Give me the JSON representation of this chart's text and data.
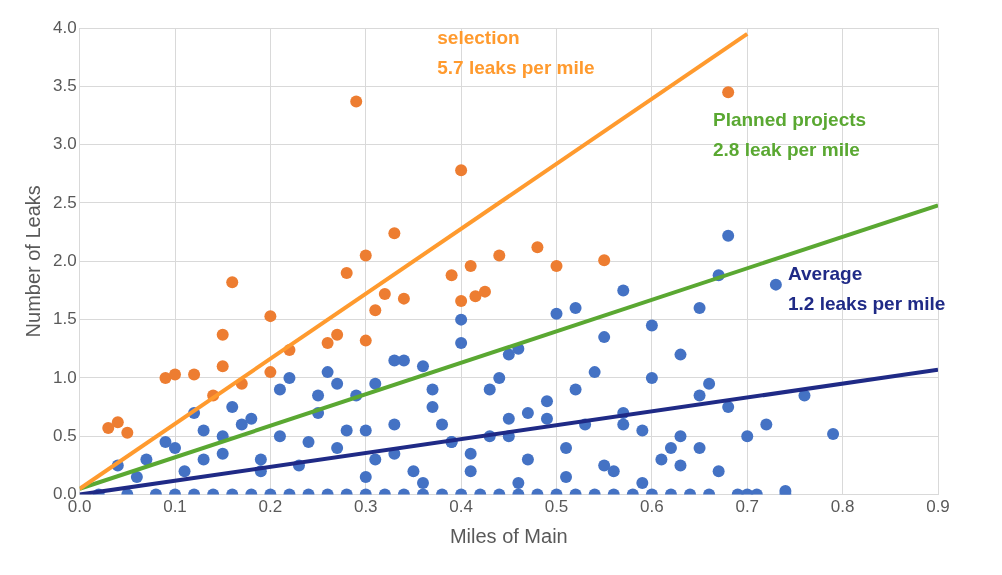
{
  "chart_data": {
    "type": "scatter",
    "xlabel": "Miles of Main",
    "ylabel": "Number of Leaks",
    "xlim": [
      0,
      0.9
    ],
    "ylim": [
      0,
      4
    ],
    "xticks": [
      {
        "value": 0,
        "label": "0.0"
      },
      0.1,
      0.2,
      0.3,
      0.4,
      0.5,
      0.6,
      0.7,
      0.8,
      0.9
    ],
    "yticks": [
      {
        "value": 0,
        "label": "0.0"
      },
      0.5,
      {
        "value": 1,
        "label": "1.0"
      },
      1.5,
      {
        "value": 2,
        "label": "2.0"
      },
      2.5,
      {
        "value": 3,
        "label": "3.0"
      },
      3.5,
      {
        "value": 4,
        "label": "4.0"
      }
    ],
    "grid": true,
    "legend": false,
    "marker": "circle",
    "series": [
      {
        "color": "#4472c4",
        "x": [
          0.02,
          0.05,
          0.08,
          0.1,
          0.12,
          0.14,
          0.16,
          0.18,
          0.2,
          0.22,
          0.24,
          0.26,
          0.28,
          0.3,
          0.32,
          0.34,
          0.36,
          0.38,
          0.4,
          0.42,
          0.44,
          0.46,
          0.48,
          0.5,
          0.52,
          0.54,
          0.56,
          0.58,
          0.6,
          0.62,
          0.64,
          0.66,
          0.69,
          0.7,
          0.71,
          0.74,
          0.04,
          0.07,
          0.09,
          0.11,
          0.13,
          0.15,
          0.17,
          0.19,
          0.21,
          0.23,
          0.25,
          0.27,
          0.29,
          0.31,
          0.33,
          0.35,
          0.37,
          0.39,
          0.41,
          0.43,
          0.45,
          0.47,
          0.49,
          0.51,
          0.53,
          0.55,
          0.57,
          0.59,
          0.61,
          0.63,
          0.65,
          0.67,
          0.06,
          0.1,
          0.13,
          0.16,
          0.19,
          0.21,
          0.24,
          0.26,
          0.28,
          0.31,
          0.33,
          0.36,
          0.38,
          0.4,
          0.43,
          0.45,
          0.47,
          0.5,
          0.52,
          0.55,
          0.57,
          0.6,
          0.62,
          0.65,
          0.68,
          0.72,
          0.76,
          0.79,
          0.12,
          0.15,
          0.18,
          0.22,
          0.25,
          0.3,
          0.34,
          0.37,
          0.4,
          0.44,
          0.46,
          0.49,
          0.52,
          0.54,
          0.57,
          0.6,
          0.63,
          0.66,
          0.7,
          0.73,
          0.74,
          0.65,
          0.68,
          0.3,
          0.36,
          0.41,
          0.46,
          0.51,
          0.56,
          0.59,
          0.63,
          0.67,
          0.27,
          0.33,
          0.39,
          0.45
        ],
        "values": [
          0,
          0,
          0,
          0,
          0,
          0,
          0,
          0,
          0,
          0,
          0,
          0,
          0,
          0,
          0,
          0,
          0,
          0,
          0,
          0,
          0,
          0,
          0,
          0,
          0,
          0,
          0,
          0,
          0,
          0,
          0,
          0,
          0,
          0,
          0,
          0,
          0.25,
          0.3,
          0.45,
          0.2,
          0.55,
          0.35,
          0.6,
          0.3,
          0.5,
          0.25,
          0.7,
          0.4,
          0.85,
          0.3,
          0.6,
          0.2,
          0.75,
          0.45,
          0.35,
          0.9,
          0.5,
          0.3,
          0.8,
          0.4,
          0.6,
          0.25,
          0.7,
          0.55,
          0.3,
          0.5,
          0.4,
          0.2,
          0.15,
          0.4,
          0.3,
          0.75,
          0.2,
          0.9,
          0.45,
          1.05,
          0.55,
          0.95,
          0.35,
          1.1,
          0.6,
          1.3,
          0.5,
          1.2,
          0.7,
          1.55,
          0.9,
          1.35,
          0.6,
          1.0,
          0.4,
          0.85,
          0.75,
          0.6,
          0.85,
          0.52,
          0.7,
          0.5,
          0.65,
          1.0,
          0.85,
          0.55,
          1.15,
          0.9,
          1.5,
          1.0,
          1.25,
          0.65,
          1.6,
          1.05,
          1.75,
          1.45,
          1.2,
          0.95,
          0.5,
          1.8,
          0.03,
          1.6,
          2.22,
          0.15,
          0.1,
          0.2,
          0.1,
          0.15,
          0.2,
          0.1,
          0.25,
          1.88,
          0.95,
          1.15,
          0.45,
          0.65
        ]
      },
      {
        "color": "#ed7d31",
        "x": [
          0.03,
          0.04,
          0.05,
          0.09,
          0.1,
          0.12,
          0.14,
          0.15,
          0.15,
          0.16,
          0.17,
          0.2,
          0.2,
          0.22,
          0.26,
          0.27,
          0.28,
          0.29,
          0.3,
          0.3,
          0.31,
          0.32,
          0.33,
          0.34,
          0.39,
          0.4,
          0.4,
          0.41,
          0.415,
          0.425,
          0.44,
          0.48,
          0.5,
          0.55,
          0.68
        ],
        "values": [
          0.57,
          0.62,
          0.53,
          1.0,
          1.03,
          1.03,
          0.85,
          1.37,
          1.1,
          1.82,
          0.95,
          1.53,
          1.05,
          1.24,
          1.3,
          1.37,
          1.9,
          3.37,
          2.05,
          1.32,
          1.58,
          1.72,
          2.24,
          1.68,
          1.88,
          2.78,
          1.66,
          1.96,
          1.7,
          1.74,
          2.05,
          2.12,
          1.96,
          2.01,
          3.45
        ]
      },
      {
        "type": "line",
        "color": "#ff9a2e",
        "x": [
          0,
          0.7
        ],
        "values": [
          0.05,
          3.95
        ],
        "marker": "none"
      },
      {
        "type": "line",
        "color": "#5aa832",
        "x": [
          0,
          0.9
        ],
        "values": [
          0.05,
          2.48
        ],
        "marker": "none"
      },
      {
        "type": "line",
        "color": "#1f2a86",
        "x": [
          0,
          0.9
        ],
        "values": [
          0,
          1.07
        ],
        "marker": "none"
      }
    ],
    "annotations": [
      "selection\n5.7 leaks per mile",
      "Planned projects\n2.8 leak per mile",
      "Average\n1.2 leaks per mile"
    ]
  }
}
